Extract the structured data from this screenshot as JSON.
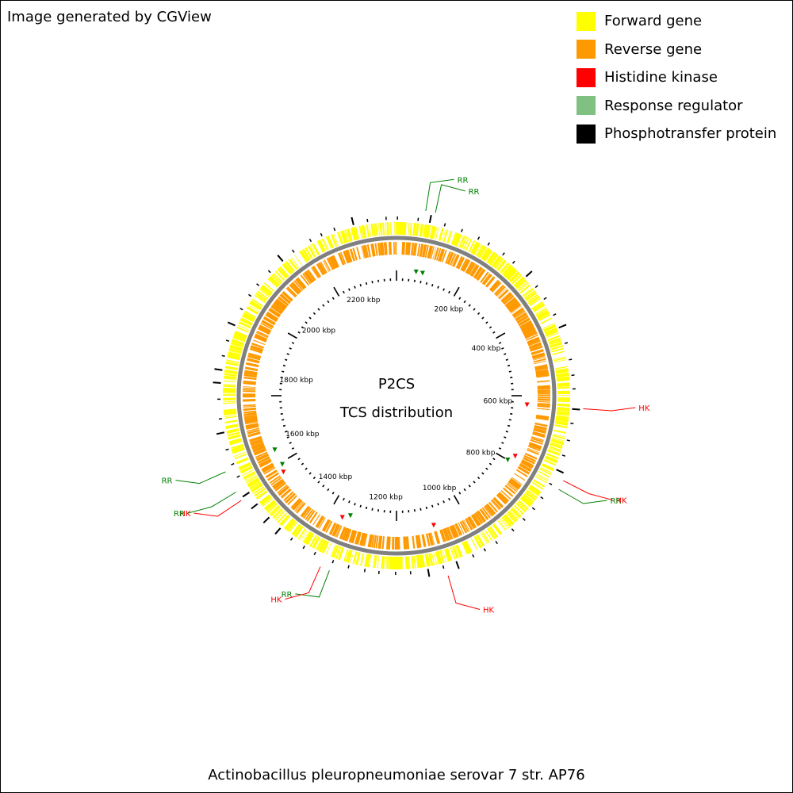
{
  "credit": "Image generated by CGView",
  "legend": [
    {
      "label": "Forward gene",
      "color": "#ffff00"
    },
    {
      "label": "Reverse gene",
      "color": "#ff9900"
    },
    {
      "label": "Histidine kinase",
      "color": "#ff0000"
    },
    {
      "label": "Response regulator",
      "color": "#80c080"
    },
    {
      "label": "Phosphotransfer protein",
      "color": "#000000"
    }
  ],
  "center": {
    "line1": "P2CS",
    "line2": "TCS distribution"
  },
  "caption": "Actinobacillus pleuropneumoniae serovar 7 str. AP76",
  "genome": {
    "ticks": [
      "200 kbp",
      "400 kbp",
      "600 kbp",
      "800 kbp",
      "1000 kbp",
      "1200 kbp",
      "1400 kbp",
      "1600 kbp",
      "1800 kbp",
      "2000 kbp",
      "2200 kbp"
    ]
  },
  "features": [
    {
      "label": "RR",
      "type": "rr",
      "color": "#008000"
    },
    {
      "label": "RR",
      "type": "rr",
      "color": "#008000"
    },
    {
      "label": "HK",
      "type": "hk",
      "color": "#ff0000"
    },
    {
      "label": "HK",
      "type": "hk",
      "color": "#ff0000"
    },
    {
      "label": "RR",
      "type": "rr",
      "color": "#008000"
    },
    {
      "label": "HK",
      "type": "hk",
      "color": "#ff0000"
    },
    {
      "label": "RR",
      "type": "rr",
      "color": "#008000"
    },
    {
      "label": "HK",
      "type": "hk",
      "color": "#ff0000"
    },
    {
      "label": "HK",
      "type": "hk",
      "color": "#ff0000"
    },
    {
      "label": "RR",
      "type": "rr",
      "color": "#008000"
    },
    {
      "label": "RR",
      "type": "rr",
      "color": "#008000"
    }
  ]
}
